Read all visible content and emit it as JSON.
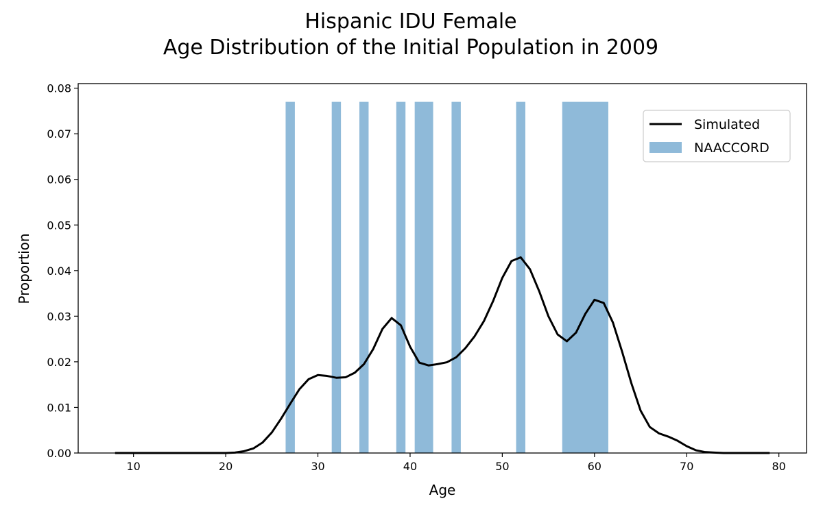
{
  "chart_data": {
    "type": "bar+line",
    "title_line1": "Hispanic IDU Female",
    "title_line2": "Age Distribution of the Initial Population in 2009",
    "xlabel": "Age",
    "ylabel": "Proportion",
    "xlim": [
      4,
      83
    ],
    "ylim": [
      0,
      0.081
    ],
    "xticks": [
      "10",
      "20",
      "30",
      "40",
      "50",
      "60",
      "70",
      "80"
    ],
    "yticks": [
      "0.00",
      "0.01",
      "0.02",
      "0.03",
      "0.04",
      "0.05",
      "0.06",
      "0.07",
      "0.08"
    ],
    "grid": false,
    "legend_position": "upper-right",
    "colors": {
      "simulated": "#000000",
      "naaccord": "#8fbad9"
    },
    "series": [
      {
        "name": "Simulated",
        "type": "line",
        "x": [
          8,
          9,
          10,
          11,
          12,
          13,
          14,
          15,
          16,
          17,
          18,
          19,
          20,
          21,
          22,
          23,
          24,
          25,
          26,
          27,
          28,
          29,
          30,
          31,
          32,
          33,
          34,
          35,
          36,
          37,
          38,
          39,
          40,
          41,
          42,
          43,
          44,
          45,
          46,
          47,
          48,
          49,
          50,
          51,
          52,
          53,
          54,
          55,
          56,
          57,
          58,
          59,
          60,
          61,
          62,
          63,
          64,
          65,
          66,
          67,
          68,
          69,
          70,
          71,
          72,
          73,
          74,
          75,
          76,
          77,
          78,
          79
        ],
        "y": [
          0,
          0,
          0,
          0,
          0,
          0,
          0,
          0,
          0,
          0,
          0,
          0,
          0,
          0.0001,
          0.0004,
          0.001,
          0.0023,
          0.0045,
          0.0075,
          0.0108,
          0.014,
          0.0162,
          0.0171,
          0.0169,
          0.0165,
          0.0166,
          0.0176,
          0.0195,
          0.0228,
          0.0272,
          0.0296,
          0.028,
          0.0233,
          0.0198,
          0.0192,
          0.0195,
          0.0199,
          0.021,
          0.023,
          0.0256,
          0.0289,
          0.0333,
          0.0384,
          0.0421,
          0.0429,
          0.0403,
          0.0355,
          0.03,
          0.026,
          0.0245,
          0.0264,
          0.0305,
          0.0336,
          0.0329,
          0.0286,
          0.0222,
          0.0153,
          0.0093,
          0.0057,
          0.0043,
          0.0036,
          0.0027,
          0.0015,
          0.0006,
          0.0002,
          0.0001,
          0,
          0,
          0,
          0,
          0,
          0
        ]
      },
      {
        "name": "NAACCORD",
        "type": "bar",
        "height": 0.077,
        "ranges": [
          [
            26.5,
            27.5
          ],
          [
            31.5,
            32.5
          ],
          [
            34.5,
            35.5
          ],
          [
            38.5,
            39.5
          ],
          [
            40.5,
            42.5
          ],
          [
            44.5,
            45.5
          ],
          [
            51.5,
            52.5
          ],
          [
            56.5,
            61.5
          ]
        ]
      }
    ]
  }
}
